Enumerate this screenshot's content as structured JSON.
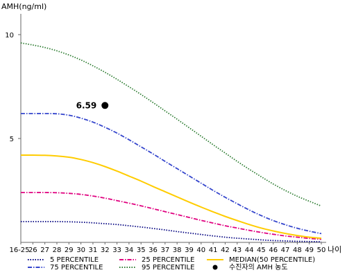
{
  "chart_data": {
    "type": "line",
    "ylabel": "AMH(ng/ml)",
    "xlabel": "나이",
    "categories": [
      "16-25",
      "26",
      "27",
      "28",
      "29",
      "30",
      "31",
      "32",
      "33",
      "34",
      "35",
      "36",
      "37",
      "38",
      "39",
      "40",
      "41",
      "42",
      "43",
      "44",
      "45",
      "46",
      "47",
      "48",
      "49",
      "50"
    ],
    "yticks": [
      "5",
      "10"
    ],
    "ylim": [
      0,
      11
    ],
    "grid": false,
    "legend_position": "bottom",
    "series": [
      {
        "name": "5 PERCENTILE",
        "color": "#00007f",
        "dash": "dotted",
        "values": [
          1.0,
          1.0,
          1.0,
          1.0,
          0.99,
          0.97,
          0.94,
          0.9,
          0.86,
          0.8,
          0.74,
          0.67,
          0.6,
          0.52,
          0.45,
          0.38,
          0.31,
          0.25,
          0.2,
          0.16,
          0.12,
          0.09,
          0.07,
          0.05,
          0.04,
          0.03
        ]
      },
      {
        "name": "25 PERCENTILE",
        "color": "#e0007f",
        "dash": "dashdot",
        "values": [
          2.4,
          2.4,
          2.4,
          2.39,
          2.36,
          2.31,
          2.23,
          2.13,
          2.01,
          1.89,
          1.76,
          1.62,
          1.48,
          1.34,
          1.2,
          1.06,
          0.93,
          0.8,
          0.69,
          0.58,
          0.48,
          0.39,
          0.31,
          0.25,
          0.19,
          0.15
        ]
      },
      {
        "name": "75 PERCENTILE",
        "color": "#3344cc",
        "dash": "dashdot",
        "values": [
          6.2,
          6.2,
          6.2,
          6.19,
          6.12,
          5.98,
          5.79,
          5.54,
          5.26,
          4.94,
          4.6,
          4.26,
          3.9,
          3.55,
          3.2,
          2.85,
          2.5,
          2.17,
          1.86,
          1.56,
          1.29,
          1.05,
          0.85,
          0.68,
          0.54,
          0.42
        ]
      },
      {
        "name": "95 PERCENTILE",
        "color": "#2e7d32",
        "dash": "dotted",
        "values": [
          9.6,
          9.5,
          9.38,
          9.22,
          9.02,
          8.78,
          8.5,
          8.19,
          7.85,
          7.49,
          7.12,
          6.73,
          6.33,
          5.93,
          5.52,
          5.11,
          4.7,
          4.3,
          3.9,
          3.52,
          3.16,
          2.81,
          2.5,
          2.22,
          1.98,
          1.75
        ]
      },
      {
        "name": "MEDIAN(50 PERCENTILE)",
        "color": "#ffcc00",
        "dash": "solid",
        "values": [
          4.2,
          4.2,
          4.19,
          4.16,
          4.1,
          3.99,
          3.84,
          3.65,
          3.43,
          3.19,
          2.95,
          2.69,
          2.44,
          2.19,
          1.94,
          1.7,
          1.47,
          1.25,
          1.05,
          0.86,
          0.69,
          0.55,
          0.43,
          0.33,
          0.25,
          0.2
        ]
      }
    ],
    "point": {
      "name": "수진자의 AMH 농도",
      "x": "32",
      "y": 6.59,
      "label": "6.59"
    }
  }
}
